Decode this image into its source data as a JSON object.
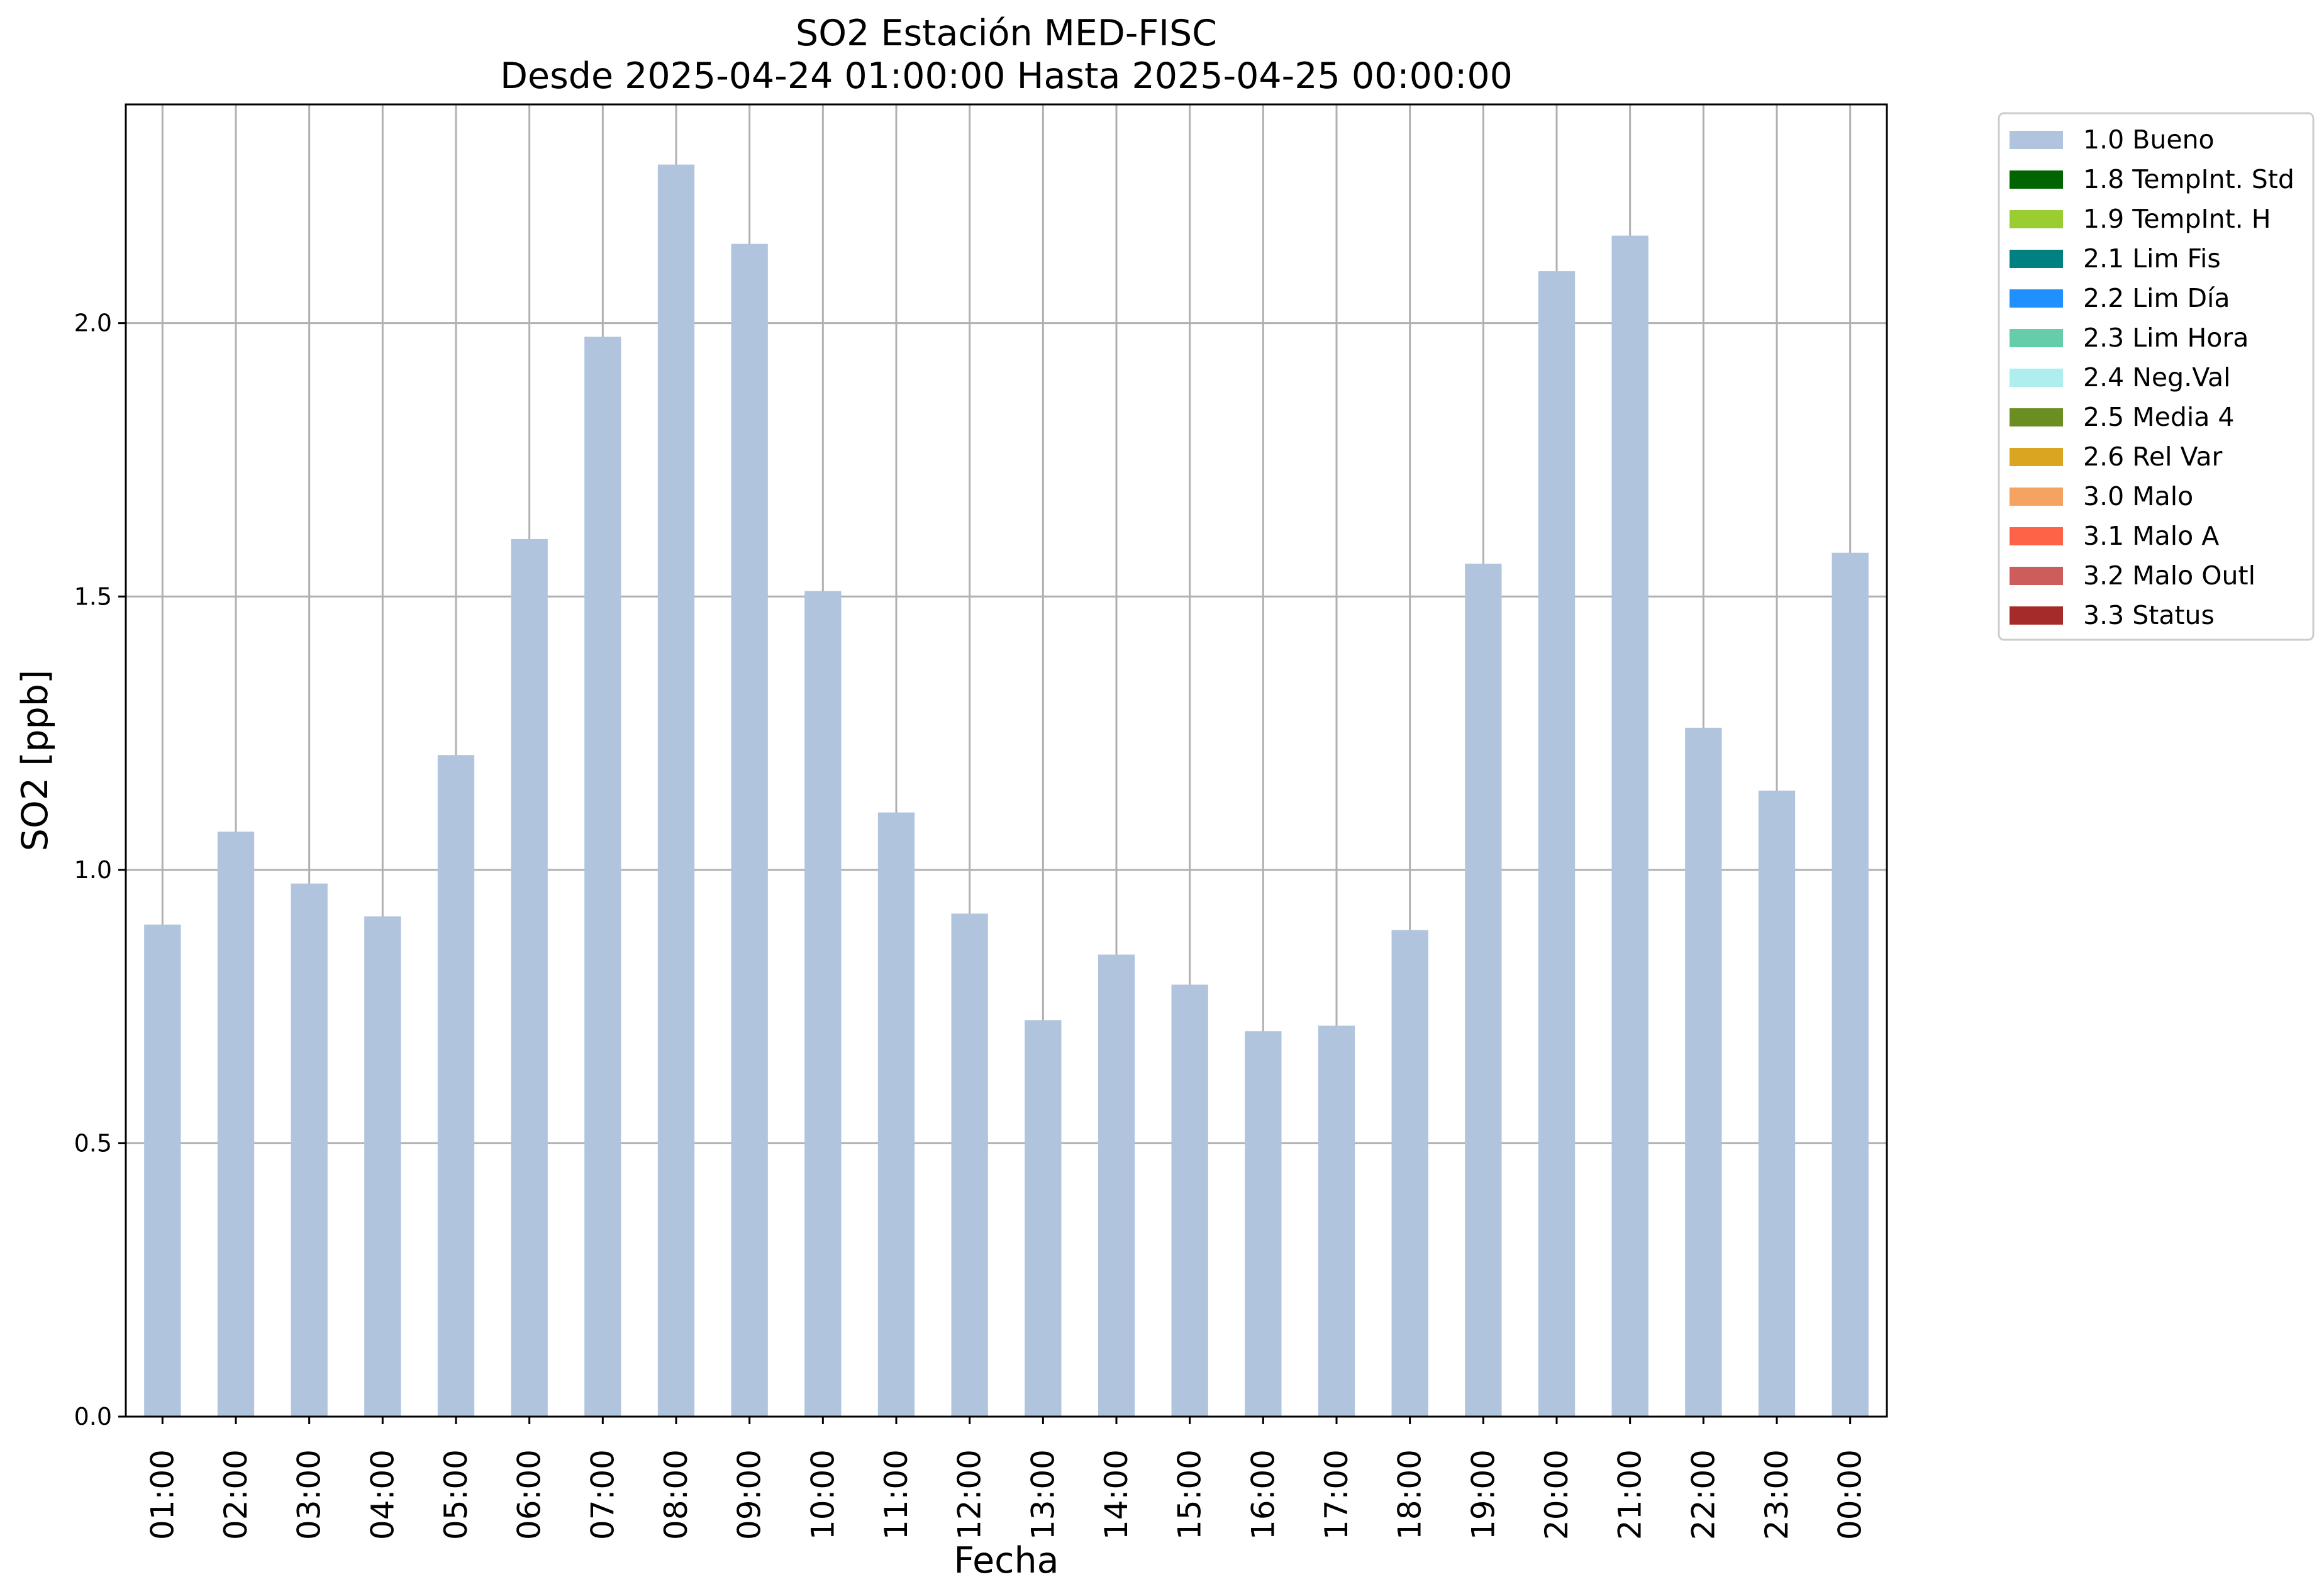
{
  "chart_data": {
    "type": "bar",
    "title": "SO2 Estación MED-FISC",
    "subtitle": "Desde 2025-04-24 01:00:00 Hasta 2025-04-25 00:00:00",
    "xlabel": "Fecha",
    "ylabel": "SO2 [ppb]",
    "ylim": [
      0,
      2.4
    ],
    "yticks": [
      "0.0",
      "0.5",
      "1.0",
      "1.5",
      "2.0"
    ],
    "grid": true,
    "legend_position": "outside-right",
    "categories": [
      "01:00",
      "02:00",
      "03:00",
      "04:00",
      "05:00",
      "06:00",
      "07:00",
      "08:00",
      "09:00",
      "10:00",
      "11:00",
      "12:00",
      "13:00",
      "14:00",
      "15:00",
      "16:00",
      "17:00",
      "18:00",
      "19:00",
      "20:00",
      "21:00",
      "22:00",
      "23:00",
      "00:00"
    ],
    "series": [
      {
        "name": "1.0 Bueno",
        "color": "#b0c4de",
        "values": [
          0.9,
          1.07,
          0.975,
          0.915,
          1.21,
          1.605,
          1.975,
          2.29,
          2.145,
          1.51,
          1.105,
          0.92,
          0.725,
          0.845,
          0.79,
          0.705,
          0.715,
          0.89,
          1.56,
          2.095,
          2.16,
          1.26,
          1.145,
          1.58
        ]
      }
    ],
    "legend": [
      {
        "label": "1.0 Bueno",
        "color": "#b0c4de"
      },
      {
        "label": "1.8 TempInt. Std",
        "color": "#006400"
      },
      {
        "label": "1.9 TempInt. H",
        "color": "#9acd32"
      },
      {
        "label": "2.1 Lim Fis",
        "color": "#008080"
      },
      {
        "label": "2.2 Lim Día",
        "color": "#1e90ff"
      },
      {
        "label": "2.3 Lim Hora",
        "color": "#66cdaa"
      },
      {
        "label": "2.4 Neg.Val",
        "color": "#afeeee"
      },
      {
        "label": "2.5 Media 4",
        "color": "#6b8e23"
      },
      {
        "label": "2.6 Rel Var",
        "color": "#daa520"
      },
      {
        "label": "3.0 Malo",
        "color": "#f4a460"
      },
      {
        "label": "3.1 Malo A",
        "color": "#ff6347"
      },
      {
        "label": "3.2 Malo Outl",
        "color": "#cd5c5c"
      },
      {
        "label": "3.3 Status",
        "color": "#a52a2a"
      }
    ]
  }
}
